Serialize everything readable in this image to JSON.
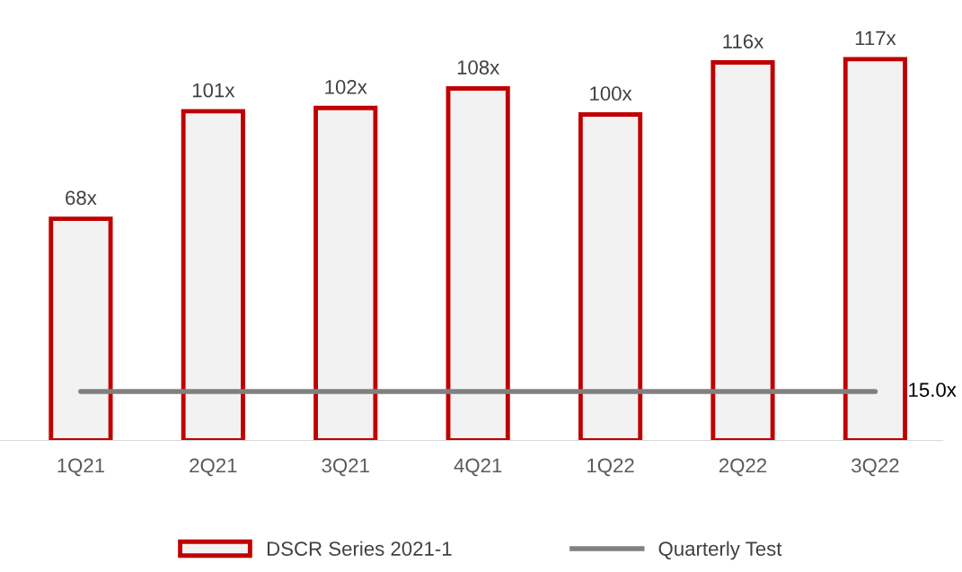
{
  "chart_data": {
    "type": "bar",
    "categories": [
      "1Q21",
      "2Q21",
      "3Q21",
      "4Q21",
      "1Q22",
      "2Q22",
      "3Q22"
    ],
    "series": [
      {
        "name": "DSCR Series 2021-1",
        "color": "#c00000",
        "values": [
          68,
          101,
          102,
          108,
          100,
          116,
          117
        ],
        "value_labels": [
          "68x",
          "101x",
          "102x",
          "108x",
          "100x",
          "116x",
          "117x"
        ]
      },
      {
        "name": "Quarterly Test",
        "type": "line",
        "color": "#808080",
        "values": [
          15,
          15,
          15,
          15,
          15,
          15,
          15
        ],
        "value_labels": [
          null,
          null,
          null,
          null,
          null,
          null,
          "15.0x"
        ]
      }
    ],
    "legend": "bottom",
    "grid": false,
    "tick_labels": "x"
  }
}
